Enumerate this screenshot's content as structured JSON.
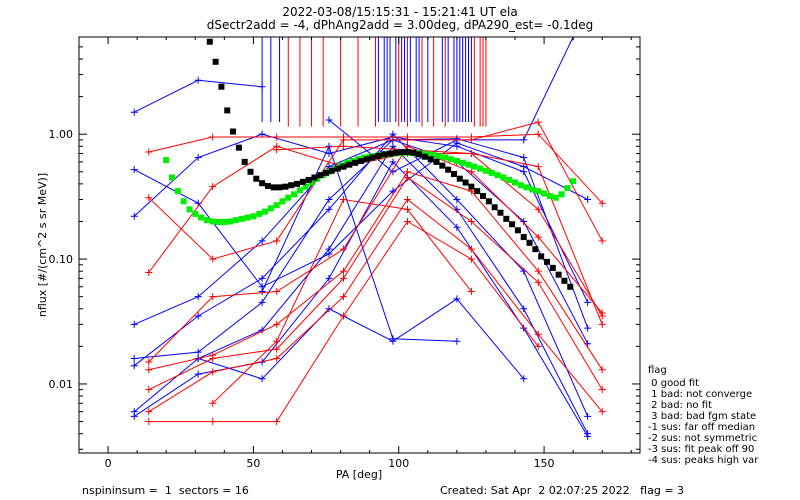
{
  "chart_data": {
    "type": "scatter",
    "title_line1": "2022-03-08/15:15:31 - 15:21:41 UT ela",
    "title_line2": "dSectr2add = -4, dPhAng2add = 3.00deg, dPA290_est=  -0.1deg",
    "xlabel": "PA [deg]",
    "ylabel": "nflux [#/(cm^2 s sr MeV)]",
    "xlim": [
      -10,
      183
    ],
    "ylim": [
      0.0028,
      6.0
    ],
    "yscale": "log",
    "x_ticks": [
      0,
      50,
      100,
      150
    ],
    "y_ticks": [
      {
        "value": 0.01,
        "label": "0.01"
      },
      {
        "value": 0.1,
        "label": "0.10"
      },
      {
        "value": 1,
        "label": "1.00"
      }
    ],
    "colors": {
      "blue": "#0000ff",
      "red": "#ff0000",
      "green": "#00ee00",
      "black": "#000000"
    },
    "series": [
      {
        "color": "blue",
        "x": [
          9,
          31,
          53
        ],
        "y": [
          1.5,
          2.7,
          2.4
        ]
      },
      {
        "color": "blue",
        "x": [
          9,
          31,
          53,
          76,
          98,
          120,
          143,
          165
        ],
        "y": [
          0.52,
          0.28,
          0.06,
          0.11,
          0.35,
          0.85,
          0.55,
          0.3
        ]
      },
      {
        "color": "blue",
        "x": [
          9,
          31,
          53,
          76,
          98,
          120,
          143,
          165
        ],
        "y": [
          0.22,
          0.65,
          1.0,
          0.7,
          0.95,
          0.8,
          0.5,
          0.045
        ]
      },
      {
        "color": "blue",
        "x": [
          9,
          31,
          53,
          76,
          98,
          120,
          143,
          165
        ],
        "y": [
          0.03,
          0.05,
          0.14,
          0.55,
          0.9,
          0.92,
          0.65,
          0.028
        ]
      },
      {
        "color": "blue",
        "x": [
          9,
          31,
          53,
          76,
          98,
          120,
          143,
          165
        ],
        "y": [
          0.016,
          0.018,
          0.045,
          0.3,
          0.9,
          0.6,
          0.2,
          0.021
        ]
      },
      {
        "color": "blue",
        "x": [
          9,
          31,
          53,
          76,
          98,
          120,
          143,
          165
        ],
        "y": [
          0.014,
          0.035,
          0.07,
          0.25,
          1.0,
          0.3,
          0.08,
          0.0055
        ]
      },
      {
        "color": "blue",
        "x": [
          9,
          31,
          53,
          76,
          98,
          120,
          143,
          165
        ],
        "y": [
          0.006,
          0.016,
          0.027,
          0.12,
          0.8,
          0.25,
          0.04,
          0.004
        ]
      },
      {
        "color": "blue",
        "x": [
          9,
          31,
          53,
          76,
          98,
          120,
          143,
          165
        ],
        "y": [
          0.0055,
          0.012,
          0.015,
          0.07,
          0.6,
          0.18,
          0.028,
          0.0038
        ]
      },
      {
        "color": "blue",
        "x": [
          31,
          53,
          76,
          98,
          120,
          143
        ],
        "y": [
          0.016,
          0.011,
          0.04,
          0.022,
          0.048,
          0.011
        ]
      },
      {
        "color": "blue",
        "x": [
          53,
          76,
          98,
          120
        ],
        "y": [
          0.055,
          0.8,
          0.023,
          0.022
        ]
      },
      {
        "color": "blue",
        "x": [
          76,
          98,
          120,
          143,
          160
        ],
        "y": [
          1.3,
          0.5,
          0.9,
          0.9,
          6.0
        ]
      },
      {
        "color": "red",
        "x": [
          14,
          36,
          58,
          81,
          103,
          125,
          148,
          170
        ],
        "y": [
          0.72,
          0.95,
          0.95,
          0.95,
          0.95,
          0.95,
          1.0,
          0.28
        ]
      },
      {
        "color": "red",
        "x": [
          14,
          36,
          58,
          81,
          103,
          125,
          148,
          170
        ],
        "y": [
          0.31,
          0.1,
          0.14,
          0.9,
          0.9,
          0.9,
          1.25,
          0.14
        ]
      },
      {
        "color": "red",
        "x": [
          14,
          36,
          58,
          81,
          103,
          125,
          148,
          170
        ],
        "y": [
          0.078,
          0.38,
          0.8,
          0.55,
          0.7,
          0.7,
          0.25,
          0.035
        ]
      },
      {
        "color": "red",
        "x": [
          14,
          36,
          58,
          81,
          103,
          125,
          148,
          170
        ],
        "y": [
          0.015,
          0.05,
          0.055,
          0.12,
          0.8,
          0.5,
          0.15,
          0.037
        ]
      },
      {
        "color": "red",
        "x": [
          14,
          36,
          58,
          81,
          103,
          125,
          148,
          170
        ],
        "y": [
          0.013,
          0.017,
          0.03,
          0.08,
          0.5,
          0.35,
          0.08,
          0.013
        ]
      },
      {
        "color": "red",
        "x": [
          14,
          36,
          58,
          81,
          103,
          125,
          148,
          170
        ],
        "y": [
          0.009,
          0.016,
          0.019,
          0.07,
          0.45,
          0.2,
          0.065,
          0.009
        ]
      },
      {
        "color": "red",
        "x": [
          14,
          36,
          58,
          81,
          103,
          125,
          148,
          170
        ],
        "y": [
          0.006,
          0.0125,
          0.016,
          0.05,
          0.3,
          0.12,
          0.025,
          0.006
        ]
      },
      {
        "color": "red",
        "x": [
          14,
          36,
          58,
          81,
          103,
          125,
          148
        ],
        "y": [
          0.005,
          0.005,
          0.005,
          0.035,
          0.2,
          0.1,
          0.02
        ]
      },
      {
        "color": "red",
        "x": [
          36,
          58,
          81,
          103,
          125
        ],
        "y": [
          0.007,
          0.022,
          0.3,
          0.25,
          0.055
        ]
      },
      {
        "color": "red",
        "x": [
          58,
          81,
          103,
          125,
          148,
          170
        ],
        "y": [
          0.75,
          0.8,
          0.75,
          0.7,
          0.55,
          0.03
        ]
      }
    ],
    "green_series": {
      "color": "green",
      "x": [
        20,
        22,
        24,
        26,
        28,
        30,
        32,
        34,
        36,
        38,
        40,
        42,
        44,
        46,
        48,
        50,
        52,
        54,
        56,
        58,
        60,
        62,
        64,
        66,
        68,
        70,
        72,
        74,
        76,
        78,
        80,
        82,
        84,
        86,
        88,
        90,
        92,
        94,
        96,
        98,
        100,
        102,
        104,
        106,
        108,
        110,
        112,
        114,
        116,
        118,
        120,
        122,
        124,
        126,
        128,
        130,
        132,
        134,
        136,
        138,
        140,
        142,
        144,
        146,
        148,
        150,
        152,
        154,
        156,
        158,
        160
      ],
      "y": [
        0.62,
        0.45,
        0.35,
        0.29,
        0.25,
        0.23,
        0.215,
        0.205,
        0.2,
        0.198,
        0.198,
        0.2,
        0.205,
        0.21,
        0.215,
        0.22,
        0.23,
        0.24,
        0.255,
        0.27,
        0.29,
        0.31,
        0.33,
        0.355,
        0.38,
        0.41,
        0.44,
        0.47,
        0.5,
        0.53,
        0.56,
        0.59,
        0.61,
        0.63,
        0.65,
        0.66,
        0.67,
        0.68,
        0.69,
        0.7,
        0.705,
        0.71,
        0.71,
        0.705,
        0.7,
        0.69,
        0.68,
        0.665,
        0.65,
        0.63,
        0.61,
        0.59,
        0.57,
        0.55,
        0.53,
        0.51,
        0.49,
        0.47,
        0.45,
        0.43,
        0.41,
        0.39,
        0.375,
        0.36,
        0.35,
        0.335,
        0.32,
        0.31,
        0.33,
        0.37,
        0.42
      ]
    },
    "black_series": {
      "color": "black",
      "x": [
        35,
        37,
        39,
        41,
        43,
        45,
        47,
        49,
        51,
        53,
        55,
        57,
        59,
        61,
        63,
        65,
        67,
        69,
        71,
        73,
        75,
        77,
        79,
        81,
        83,
        85,
        87,
        89,
        91,
        93,
        95,
        97,
        99,
        101,
        103,
        105,
        107,
        109,
        111,
        113,
        115,
        117,
        119,
        121,
        123,
        125,
        127,
        129,
        131,
        133,
        135,
        137,
        139,
        141,
        143,
        145,
        147,
        149,
        151,
        153,
        155,
        157,
        159
      ],
      "y": [
        5.5,
        3.8,
        2.4,
        1.55,
        1.05,
        0.78,
        0.6,
        0.5,
        0.44,
        0.405,
        0.385,
        0.375,
        0.375,
        0.38,
        0.39,
        0.4,
        0.415,
        0.43,
        0.45,
        0.47,
        0.49,
        0.51,
        0.53,
        0.55,
        0.57,
        0.59,
        0.61,
        0.63,
        0.65,
        0.67,
        0.69,
        0.7,
        0.71,
        0.72,
        0.72,
        0.71,
        0.69,
        0.66,
        0.63,
        0.6,
        0.56,
        0.52,
        0.48,
        0.44,
        0.41,
        0.38,
        0.35,
        0.32,
        0.29,
        0.26,
        0.235,
        0.21,
        0.19,
        0.17,
        0.15,
        0.135,
        0.12,
        0.105,
        0.095,
        0.085,
        0.075,
        0.067,
        0.06
      ]
    },
    "blue_ticks_x": [
      53,
      56,
      59,
      93,
      95,
      96,
      97,
      99,
      101,
      102,
      104,
      106,
      107,
      110,
      115,
      117,
      119,
      120,
      121,
      122,
      123,
      124,
      125
    ],
    "red_ticks_x": [
      62,
      66,
      70,
      74,
      80,
      86,
      92,
      100,
      103,
      108,
      112,
      116,
      126,
      128,
      129,
      130
    ],
    "legend": {
      "title": "flag",
      "items": [
        " 0 good fit",
        " 1 bad: not converge",
        " 2 bad: no fit",
        " 3 bad: bad fgm state",
        "-1 sus: far off median",
        "-2 sus: not symmetric",
        "-3 sus: fit peak off 90",
        "-4 sus: peaks high var"
      ]
    },
    "footer": {
      "left": "nspininsum =  1  sectors = 16",
      "right": "Created: Sat Apr  2 02:07:25 2022   flag = 3"
    }
  }
}
